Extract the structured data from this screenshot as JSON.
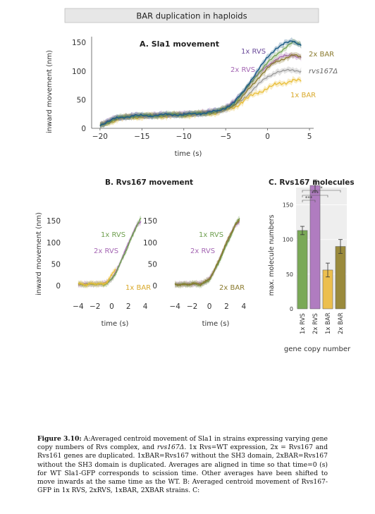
{
  "figure_title": "BAR duplication in haploids",
  "colors": {
    "rvs1x": "#6f9f4f",
    "rvs2x": "#a466b3",
    "bar1x": "#e9bd35",
    "bar2x": "#8a7a2e",
    "rvs167d": "#999999",
    "wt": "#1f5e87",
    "shade": "#8fc1d6"
  },
  "panel_a": {
    "title": "A.  Sla1 movement",
    "xlabel": "time (s)",
    "ylabel": "inward movement (nm)",
    "x_ticks": [
      "−20",
      "−15",
      "−10",
      "−5",
      "0",
      "5"
    ],
    "y_ticks": [
      "0",
      "50",
      "100",
      "150"
    ],
    "labels": {
      "rvs1x": "1x RVS",
      "rvs2x": "2x RVS",
      "bar2x": "2x BAR",
      "rvs167d": "rvs167Δ",
      "bar1x": "1x BAR"
    }
  },
  "panel_b": {
    "title": "B.  Rvs167 movement",
    "xlabel": "time (s)",
    "ylabel": "inward movement (nm)",
    "x_ticks": [
      "−4",
      "−2",
      "0",
      "2",
      "4"
    ],
    "y_ticks": [
      "0",
      "50",
      "100",
      "150"
    ],
    "left_labels": {
      "rvs1x": "1x RVS",
      "rvs2x": "2x RVS",
      "bar1x": "1x BAR"
    },
    "right_labels": {
      "rvs1x": "1x RVS",
      "rvs2x": "2x RVS",
      "bar2x": "2x BAR"
    }
  },
  "panel_c": {
    "title": "C.  Rvs167 molecules",
    "ylabel": "max. molecule numbers",
    "xlabel": "gene copy number",
    "y_ticks": [
      "0",
      "50",
      "100",
      "150"
    ],
    "significance": [
      "*",
      "***",
      "***"
    ]
  },
  "chart_data": [
    {
      "type": "line",
      "title": "A.  Sla1 movement",
      "xlabel": "time (s)",
      "ylabel": "inward movement (nm)",
      "xlim": [
        -21,
        5.5
      ],
      "ylim": [
        0,
        160
      ],
      "x": [
        -20,
        -18,
        -16,
        -14,
        -12,
        -10,
        -8,
        -6,
        -5,
        -4,
        -3,
        -2,
        -1,
        0,
        1,
        2,
        3,
        4
      ],
      "series": [
        {
          "name": "1x RVS",
          "values": [
            5,
            18,
            22,
            22,
            24,
            24,
            26,
            30,
            36,
            44,
            60,
            80,
            98,
            114,
            128,
            140,
            150,
            146
          ]
        },
        {
          "name": "2x RVS",
          "values": [
            6,
            19,
            22,
            23,
            24,
            25,
            27,
            31,
            37,
            46,
            62,
            80,
            96,
            110,
            120,
            126,
            128,
            124
          ]
        },
        {
          "name": "2x BAR",
          "values": [
            5,
            17,
            21,
            22,
            23,
            24,
            26,
            29,
            34,
            41,
            55,
            72,
            90,
            105,
            116,
            122,
            128,
            124
          ]
        },
        {
          "name": "rvs167Δ",
          "values": [
            6,
            18,
            21,
            22,
            23,
            24,
            26,
            29,
            33,
            39,
            50,
            64,
            78,
            90,
            98,
            100,
            102,
            100
          ]
        },
        {
          "name": "1x BAR",
          "values": [
            4,
            16,
            20,
            21,
            22,
            23,
            25,
            28,
            32,
            37,
            46,
            56,
            64,
            70,
            76,
            80,
            84,
            82
          ]
        },
        {
          "name": "",
          "values": [
            6,
            18,
            22,
            22,
            24,
            24,
            26,
            30,
            36,
            45,
            62,
            84,
            104,
            124,
            140,
            148,
            152,
            146
          ]
        }
      ]
    },
    {
      "type": "line",
      "title": "B.  Rvs167 movement",
      "xlabel": "time (s)",
      "ylabel": "inward movement (nm)",
      "xlim": [
        -5,
        4.5
      ],
      "ylim": [
        0,
        160
      ],
      "x": [
        -4,
        -3,
        -2,
        -1,
        -0.5,
        0,
        0.5,
        1,
        1.5,
        2,
        2.5,
        3,
        3.5
      ],
      "series": [
        {
          "name": "1x RVS",
          "values": [
            3,
            2,
            4,
            2,
            6,
            14,
            30,
            50,
            72,
            94,
            116,
            140,
            156
          ]
        },
        {
          "name": "2x RVS",
          "values": [
            2,
            4,
            3,
            5,
            8,
            16,
            32,
            52,
            76,
            98,
            120,
            140,
            148
          ]
        },
        {
          "name": "1x BAR",
          "values": [
            4,
            2,
            5,
            3,
            10,
            24,
            40,
            null,
            null,
            null,
            null,
            null,
            null
          ]
        }
      ]
    },
    {
      "type": "line",
      "title": "",
      "xlabel": "time (s)",
      "xlim": [
        -5,
        4.5
      ],
      "ylim": [
        0,
        160
      ],
      "x": [
        -4,
        -3,
        -2,
        -1,
        -0.5,
        0,
        0.5,
        1,
        1.5,
        2,
        2.5,
        3,
        3.5
      ],
      "series": [
        {
          "name": "1x RVS",
          "values": [
            3,
            2,
            4,
            2,
            6,
            14,
            30,
            50,
            72,
            94,
            116,
            140,
            156
          ]
        },
        {
          "name": "2x RVS",
          "values": [
            2,
            4,
            3,
            5,
            8,
            16,
            32,
            52,
            76,
            98,
            120,
            140,
            148
          ]
        },
        {
          "name": "2x BAR",
          "values": [
            3,
            2,
            4,
            4,
            8,
            16,
            32,
            54,
            78,
            100,
            122,
            140,
            150
          ]
        }
      ]
    },
    {
      "type": "bar",
      "title": "C.  Rvs167 molecules",
      "xlabel": "gene copy number",
      "ylabel": "max. molecule numbers",
      "ylim": [
        0,
        175
      ],
      "categories": [
        "1x RVS",
        "2x RVS",
        "1x BAR",
        "2x BAR"
      ],
      "values": [
        113,
        178,
        56,
        90
      ],
      "errors": [
        6,
        8,
        10,
        10
      ],
      "colors": [
        "#7aa957",
        "#b07cc0",
        "#ecbf4e",
        "#9a8a3c"
      ]
    }
  ],
  "caption": {
    "label": "Figure 3.10:",
    "p1": " A:Averaged centroid movement of Sla1 in strains expressing varying gene copy numbers of Rvs complex, and ",
    "mutant": "rvs167Δ",
    "p2": ". 1x Rvs=WT expression, 2x = Rvs167 and Rvs161 genes are duplicated. 1xBAR=Rvs167 without the SH3 domain, 2xBAR=Rvs167 without the SH3 domain is duplicated. Averages are aligned in time so that time=0 (s) for WT Sla1-GFP corresponds to scission time. Other averages have been shifted to move inwards at the same time as the WT. B: Averaged centroid movement of Rvs167-GFP in 1x RVS, 2xRVS, 1xBAR, 2XBAR strains. C:"
  }
}
